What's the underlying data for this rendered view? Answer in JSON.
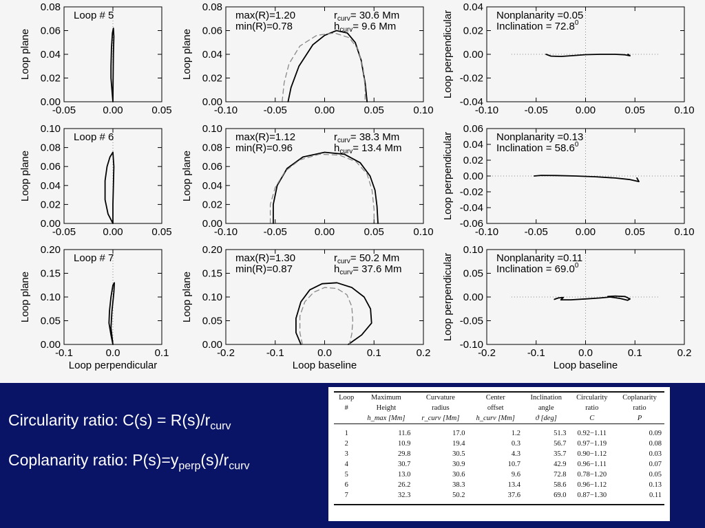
{
  "chart_data": {
    "layout": "3x3 grid of line plots: rows = loops, columns = loop shape views",
    "panels": [
      {
        "type": "line",
        "row": 0,
        "col": 0,
        "tag": "Loop # 5",
        "xlabel": "",
        "ylabel": "Loop plane",
        "xlim": [
          -0.05,
          0.05
        ],
        "ylim": [
          0.0,
          0.08
        ],
        "xticks": [
          "-0.05",
          "0.00",
          "0.05"
        ],
        "yticks": [
          "0.00",
          "0.02",
          "0.04",
          "0.06",
          "0.08"
        ],
        "ref_lines": [
          "x=0"
        ],
        "series": [
          {
            "style": "solid",
            "points": [
              [
                0.0,
                0.0
              ],
              [
                -0.001,
                0.01
              ],
              [
                -0.002,
                0.02
              ],
              [
                -0.002,
                0.03
              ],
              [
                -0.0015,
                0.045
              ],
              [
                -0.0005,
                0.058
              ],
              [
                0.0005,
                0.062
              ],
              [
                0.001,
                0.055
              ],
              [
                0.0005,
                0.04
              ],
              [
                0.0002,
                0.02
              ],
              [
                0.0,
                0.0
              ]
            ]
          }
        ]
      },
      {
        "type": "line",
        "row": 0,
        "col": 1,
        "xlabel": "",
        "ylabel": "Loop plane",
        "xlim": [
          -0.1,
          0.1
        ],
        "ylim": [
          0.0,
          0.08
        ],
        "xticks": [
          "-0.10",
          "-0.05",
          "0.00",
          "0.05",
          "0.10"
        ],
        "yticks": [
          "0.00",
          "0.02",
          "0.04",
          "0.06",
          "0.08"
        ],
        "annotations": {
          "max_r": "max(R)=1.20",
          "min_r": "min(R)=0.78",
          "r_curv": "30.6 Mm",
          "h_curv": " 9.6 Mm"
        },
        "series": [
          {
            "style": "solid",
            "points": [
              [
                -0.037,
                0.0
              ],
              [
                -0.034,
                0.012
              ],
              [
                -0.026,
                0.03
              ],
              [
                -0.012,
                0.048
              ],
              [
                0.0,
                0.056
              ],
              [
                0.012,
                0.06
              ],
              [
                0.023,
                0.058
              ],
              [
                0.031,
                0.05
              ],
              [
                0.037,
                0.035
              ],
              [
                0.041,
                0.016
              ],
              [
                0.043,
                0.0
              ]
            ]
          },
          {
            "style": "dashed",
            "points": [
              [
                -0.043,
                0.0
              ],
              [
                -0.041,
                0.016
              ],
              [
                -0.036,
                0.032
              ],
              [
                -0.025,
                0.047
              ],
              [
                -0.008,
                0.056
              ],
              [
                0.01,
                0.058
              ],
              [
                0.025,
                0.054
              ],
              [
                0.034,
                0.044
              ],
              [
                0.039,
                0.028
              ],
              [
                0.041,
                0.012
              ],
              [
                0.041,
                0.0
              ]
            ]
          }
        ]
      },
      {
        "type": "line",
        "row": 0,
        "col": 2,
        "tag": "",
        "xlabel": "",
        "ylabel": "Loop perpendicular",
        "xlim": [
          -0.1,
          0.1
        ],
        "ylim": [
          -0.04,
          0.04
        ],
        "xticks": [
          "-0.10",
          "-0.05",
          "0.00",
          "0.05",
          "0.10"
        ],
        "yticks": [
          "-0.04",
          "-0.02",
          "0.00",
          "0.02",
          "0.04"
        ],
        "annotations": {
          "nonplanarity": "Nonplanarity =0.05",
          "inclination": "Inclination  =  72.8",
          "degree_mark": "0"
        },
        "ref_lines": [
          "x=0",
          "y=0 dotted from -0.075 to 0.075"
        ],
        "series": [
          {
            "style": "solid",
            "points": [
              [
                -0.04,
                0.0
              ],
              [
                -0.035,
                -0.0015
              ],
              [
                -0.025,
                -0.0018
              ],
              [
                -0.015,
                -0.0012
              ],
              [
                0.0,
                -0.0003
              ],
              [
                0.015,
                0.0
              ],
              [
                0.03,
                0.0
              ],
              [
                0.04,
                -0.0004
              ],
              [
                0.045,
                -0.0012
              ],
              [
                0.043,
                0.0
              ]
            ]
          }
        ]
      },
      {
        "type": "line",
        "row": 1,
        "col": 0,
        "tag": "Loop # 6",
        "xlabel": "",
        "ylabel": "Loop plane",
        "xlim": [
          -0.05,
          0.05
        ],
        "ylim": [
          0.0,
          0.1
        ],
        "xticks": [
          "-0.05",
          "0.00",
          "0.05"
        ],
        "yticks": [
          "0.00",
          "0.02",
          "0.04",
          "0.06",
          "0.08",
          "0.10"
        ],
        "ref_lines": [
          "x=0"
        ],
        "series": [
          {
            "style": "solid",
            "points": [
              [
                0.0,
                0.0
              ],
              [
                -0.005,
                0.01
              ],
              [
                -0.008,
                0.025
              ],
              [
                -0.008,
                0.045
              ],
              [
                -0.006,
                0.06
              ],
              [
                -0.003,
                0.07
              ],
              [
                0.0,
                0.075
              ],
              [
                0.001,
                0.06
              ],
              [
                0.0005,
                0.04
              ],
              [
                0.0,
                0.02
              ],
              [
                0.0,
                0.0
              ]
            ]
          }
        ]
      },
      {
        "type": "line",
        "row": 1,
        "col": 1,
        "xlabel": "",
        "ylabel": "Loop plane",
        "xlim": [
          -0.1,
          0.1
        ],
        "ylim": [
          0.0,
          0.1
        ],
        "xticks": [
          "-0.10",
          "-0.05",
          "0.00",
          "0.05",
          "0.10"
        ],
        "yticks": [
          "0.00",
          "0.02",
          "0.04",
          "0.06",
          "0.08",
          "0.10"
        ],
        "annotations": {
          "max_r": "max(R)=1.12",
          "min_r": "min(R)=0.96",
          "r_curv": "38.3 Mm",
          "h_curv": " 13.4 Mm"
        },
        "series": [
          {
            "style": "solid",
            "points": [
              [
                -0.052,
                0.0
              ],
              [
                -0.052,
                0.02
              ],
              [
                -0.048,
                0.04
              ],
              [
                -0.038,
                0.058
              ],
              [
                -0.022,
                0.07
              ],
              [
                0.0,
                0.075
              ],
              [
                0.02,
                0.073
              ],
              [
                0.036,
                0.064
              ],
              [
                0.046,
                0.05
              ],
              [
                0.051,
                0.035
              ],
              [
                0.053,
                0.018
              ],
              [
                0.054,
                0.0
              ]
            ]
          },
          {
            "style": "dashed",
            "points": [
              [
                -0.055,
                0.0
              ],
              [
                -0.055,
                0.02
              ],
              [
                -0.05,
                0.038
              ],
              [
                -0.04,
                0.055
              ],
              [
                -0.025,
                0.067
              ],
              [
                -0.005,
                0.073
              ],
              [
                0.015,
                0.072
              ],
              [
                0.032,
                0.065
              ],
              [
                0.043,
                0.052
              ],
              [
                0.048,
                0.035
              ],
              [
                0.05,
                0.015
              ],
              [
                0.05,
                0.0
              ]
            ]
          }
        ]
      },
      {
        "type": "line",
        "row": 1,
        "col": 2,
        "xlabel": "",
        "ylabel": "Loop perpendicular",
        "xlim": [
          -0.1,
          0.1
        ],
        "ylim": [
          -0.06,
          0.06
        ],
        "xticks": [
          "-0.10",
          "-0.05",
          "0.00",
          "0.05",
          "0.10"
        ],
        "yticks": [
          "-0.06",
          "-0.04",
          "-0.02",
          "0.00",
          "0.02",
          "0.04",
          "0.06"
        ],
        "annotations": {
          "nonplanarity": "Nonplanarity =0.13",
          "inclination": "Inclination  =  58.6",
          "degree_mark": "0"
        },
        "ref_lines": [
          "x=0",
          "y=0 dotted from -0.1 to 0.1"
        ],
        "series": [
          {
            "style": "solid",
            "points": [
              [
                -0.052,
                0.0
              ],
              [
                -0.045,
                0.0008
              ],
              [
                -0.03,
                0.0006
              ],
              [
                -0.01,
                0.0
              ],
              [
                0.01,
                -0.001
              ],
              [
                0.03,
                -0.0025
              ],
              [
                0.045,
                -0.0045
              ],
              [
                0.054,
                -0.007
              ],
              [
                0.052,
                -0.0025
              ]
            ]
          }
        ]
      },
      {
        "type": "line",
        "row": 2,
        "col": 0,
        "tag": "Loop # 7",
        "xlabel": "Loop perpendicular",
        "ylabel": "Loop plane",
        "xlim": [
          -0.1,
          0.1
        ],
        "ylim": [
          0.0,
          0.2
        ],
        "xticks": [
          "-0.1",
          "0.0",
          "0.1"
        ],
        "yticks": [
          "0.00",
          "0.05",
          "0.10",
          "0.15",
          "0.20"
        ],
        "ref_lines": [
          "x=0"
        ],
        "series": [
          {
            "style": "solid",
            "points": [
              [
                0.0,
                0.0
              ],
              [
                -0.004,
                0.02
              ],
              [
                -0.008,
                0.045
              ],
              [
                -0.007,
                0.07
              ],
              [
                -0.004,
                0.1
              ],
              [
                0.0,
                0.125
              ],
              [
                0.003,
                0.13
              ],
              [
                0.002,
                0.11
              ],
              [
                -0.002,
                0.07
              ],
              [
                -0.004,
                0.035
              ],
              [
                0.0,
                0.0
              ]
            ]
          }
        ]
      },
      {
        "type": "line",
        "row": 2,
        "col": 1,
        "xlabel": "Loop baseline",
        "ylabel": "Loop plane",
        "xlim": [
          -0.2,
          0.2
        ],
        "ylim": [
          0.0,
          0.2
        ],
        "xticks": [
          "-0.2",
          "-0.1",
          "0.0",
          "0.1",
          "0.2"
        ],
        "yticks": [
          "0.00",
          "0.05",
          "0.10",
          "0.15",
          "0.20"
        ],
        "annotations": {
          "max_r": "max(R)=1.30",
          "min_r": "min(R)=0.87",
          "r_curv": "50.2 Mm",
          "h_curv": " 37.6 Mm"
        },
        "series": [
          {
            "style": "solid",
            "points": [
              [
                -0.048,
                0.0
              ],
              [
                -0.058,
                0.025
              ],
              [
                -0.058,
                0.055
              ],
              [
                -0.048,
                0.09
              ],
              [
                -0.03,
                0.115
              ],
              [
                -0.005,
                0.128
              ],
              [
                0.025,
                0.13
              ],
              [
                0.055,
                0.12
              ],
              [
                0.08,
                0.1
              ],
              [
                0.093,
                0.075
              ],
              [
                0.095,
                0.045
              ],
              [
                0.075,
                0.02
              ],
              [
                0.048,
                0.0
              ]
            ]
          },
          {
            "style": "dashed",
            "points": [
              [
                -0.045,
                0.0
              ],
              [
                -0.05,
                0.025
              ],
              [
                -0.05,
                0.06
              ],
              [
                -0.04,
                0.09
              ],
              [
                -0.022,
                0.11
              ],
              [
                0.0,
                0.12
              ],
              [
                0.025,
                0.118
              ],
              [
                0.045,
                0.105
              ],
              [
                0.055,
                0.08
              ],
              [
                0.057,
                0.05
              ],
              [
                0.055,
                0.022
              ],
              [
                0.05,
                0.0
              ]
            ]
          }
        ]
      },
      {
        "type": "line",
        "row": 2,
        "col": 2,
        "xlabel": "Loop baseline",
        "ylabel": "Loop perpendicular",
        "xlim": [
          -0.2,
          0.2
        ],
        "ylim": [
          -0.1,
          0.1
        ],
        "xticks": [
          "-0.2",
          "-0.1",
          "0.0",
          "0.1",
          "0.2"
        ],
        "yticks": [
          "-0.10",
          "-0.05",
          "0.00",
          "0.05",
          "0.10"
        ],
        "annotations": {
          "nonplanarity": "Nonplanarity =0.11",
          "inclination": "Inclination  =  69.0",
          "degree_mark": "0"
        },
        "ref_lines": [
          "x=0",
          "y=0 dotted from -0.15 to 0.15"
        ],
        "series": [
          {
            "style": "solid",
            "points": [
              [
                -0.063,
                -0.005
              ],
              [
                -0.055,
                -0.002
              ],
              [
                -0.045,
                -0.001
              ],
              [
                -0.05,
                -0.006
              ],
              [
                -0.03,
                -0.006
              ],
              [
                0.0,
                -0.004
              ],
              [
                0.03,
                -0.002
              ],
              [
                0.05,
                0.0
              ],
              [
                0.07,
                -0.003
              ],
              [
                0.085,
                -0.007
              ],
              [
                0.09,
                -0.004
              ],
              [
                0.08,
                0.001
              ],
              [
                0.06,
                0.002
              ],
              [
                0.045,
                0.001
              ]
            ]
          }
        ]
      }
    ]
  },
  "formulas": {
    "circularity": {
      "prefix": "Circularity ratio: C(s) = R(s)/r",
      "sub": "curv"
    },
    "coplanarity": {
      "prefix": "Coplanarity ratio: P(s)=y",
      "sub1": "perp",
      "mid": "(s)/r",
      "sub2": "curv"
    }
  },
  "table": {
    "headers": [
      [
        "Loop",
        "#",
        ""
      ],
      [
        "Maximum",
        "Height",
        "h_max [Mm]"
      ],
      [
        "Curvature",
        "radius",
        "r_curv [Mm]"
      ],
      [
        "Center",
        "offset",
        "h_curv [Mm]"
      ],
      [
        "Inclination",
        "angle",
        "ϑ [deg]"
      ],
      [
        "Circularity",
        "ratio",
        "C"
      ],
      [
        "Coplanarity",
        "ratio",
        "P"
      ]
    ],
    "rows": [
      [
        "1",
        "11.6",
        "17.0",
        "1.2",
        "51.3",
        "0.92−1.11",
        "0.09"
      ],
      [
        "2",
        "10.9",
        "19.4",
        "0.3",
        "56.7",
        "0.97−1.19",
        "0.08"
      ],
      [
        "3",
        "29.8",
        "30.5",
        "4.3",
        "35.7",
        "0.90−1.12",
        "0.03"
      ],
      [
        "4",
        "30.7",
        "30.9",
        "10.7",
        "42.9",
        "0.96−1.11",
        "0.07"
      ],
      [
        "5",
        "13.0",
        "30.6",
        "9.6",
        "72.8",
        "0.78−1.20",
        "0.05"
      ],
      [
        "6",
        "26.2",
        "38.3",
        "13.4",
        "58.6",
        "0.96−1.12",
        "0.13"
      ],
      [
        "7",
        "32.3",
        "50.2",
        "37.6",
        "69.0",
        "0.87−1.30",
        "0.11"
      ]
    ]
  },
  "colors": {
    "band": "#0a1466",
    "plot_bg": "#f5f5f5",
    "line": "#000000",
    "dashed_line": "#888888",
    "formula_text": "#ffffff"
  }
}
